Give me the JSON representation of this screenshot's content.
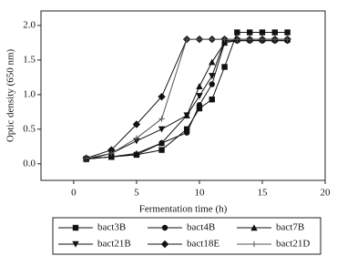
{
  "chart_data": {
    "type": "line",
    "xlabel": "Fermentation time (h)",
    "ylabel": "Optic density (650 nm)",
    "x": [
      1,
      3,
      5,
      7,
      9,
      10,
      11,
      12,
      13,
      14,
      15,
      16,
      17
    ],
    "xlim": [
      -2.6,
      20
    ],
    "xticks": [
      0,
      5,
      10,
      15,
      20
    ],
    "ylim": [
      -0.24,
      2.21
    ],
    "yticks": [
      {
        "value": 0,
        "label": "0.0"
      },
      0.5,
      {
        "value": 1,
        "label": "1.0"
      },
      1.5,
      {
        "value": 2,
        "label": "2.0"
      }
    ],
    "series": [
      {
        "name": "bact3B",
        "color": "#111111",
        "marker": "square",
        "values": [
          0.07,
          0.1,
          0.13,
          0.2,
          0.5,
          0.8,
          0.93,
          1.4,
          1.9,
          1.9,
          1.9,
          1.9,
          1.9
        ]
      },
      {
        "name": "bact4B",
        "color": "#111111",
        "marker": "circle",
        "values": [
          0.07,
          0.1,
          0.13,
          0.3,
          0.45,
          0.85,
          1.15,
          1.75,
          1.78,
          1.78,
          1.78,
          1.78,
          1.78
        ]
      },
      {
        "name": "bact7B",
        "color": "#111111",
        "marker": "triangle-up",
        "values": [
          0.07,
          0.1,
          0.15,
          0.3,
          0.7,
          1.12,
          1.47,
          1.75,
          1.8,
          1.8,
          1.8,
          1.8,
          1.8
        ]
      },
      {
        "name": "bact21B",
        "color": "#111111",
        "marker": "triangle-down",
        "values": [
          0.06,
          0.15,
          0.33,
          0.5,
          0.7,
          0.98,
          1.27,
          1.78,
          1.78,
          1.78,
          1.78,
          1.78,
          1.78
        ]
      },
      {
        "name": "bact18E",
        "color": "#111111",
        "marker": "diamond",
        "values": [
          0.08,
          0.2,
          0.57,
          0.97,
          1.8,
          1.8,
          1.8,
          1.8,
          1.8,
          1.8,
          1.8,
          1.8,
          1.8
        ]
      },
      {
        "name": "bact21D",
        "color": "#555555",
        "marker": "plus",
        "values": [
          0.08,
          0.15,
          0.37,
          0.65,
          1.8,
          1.8,
          1.8,
          1.8,
          1.8,
          1.8,
          1.8,
          1.8,
          1.8
        ]
      }
    ]
  }
}
